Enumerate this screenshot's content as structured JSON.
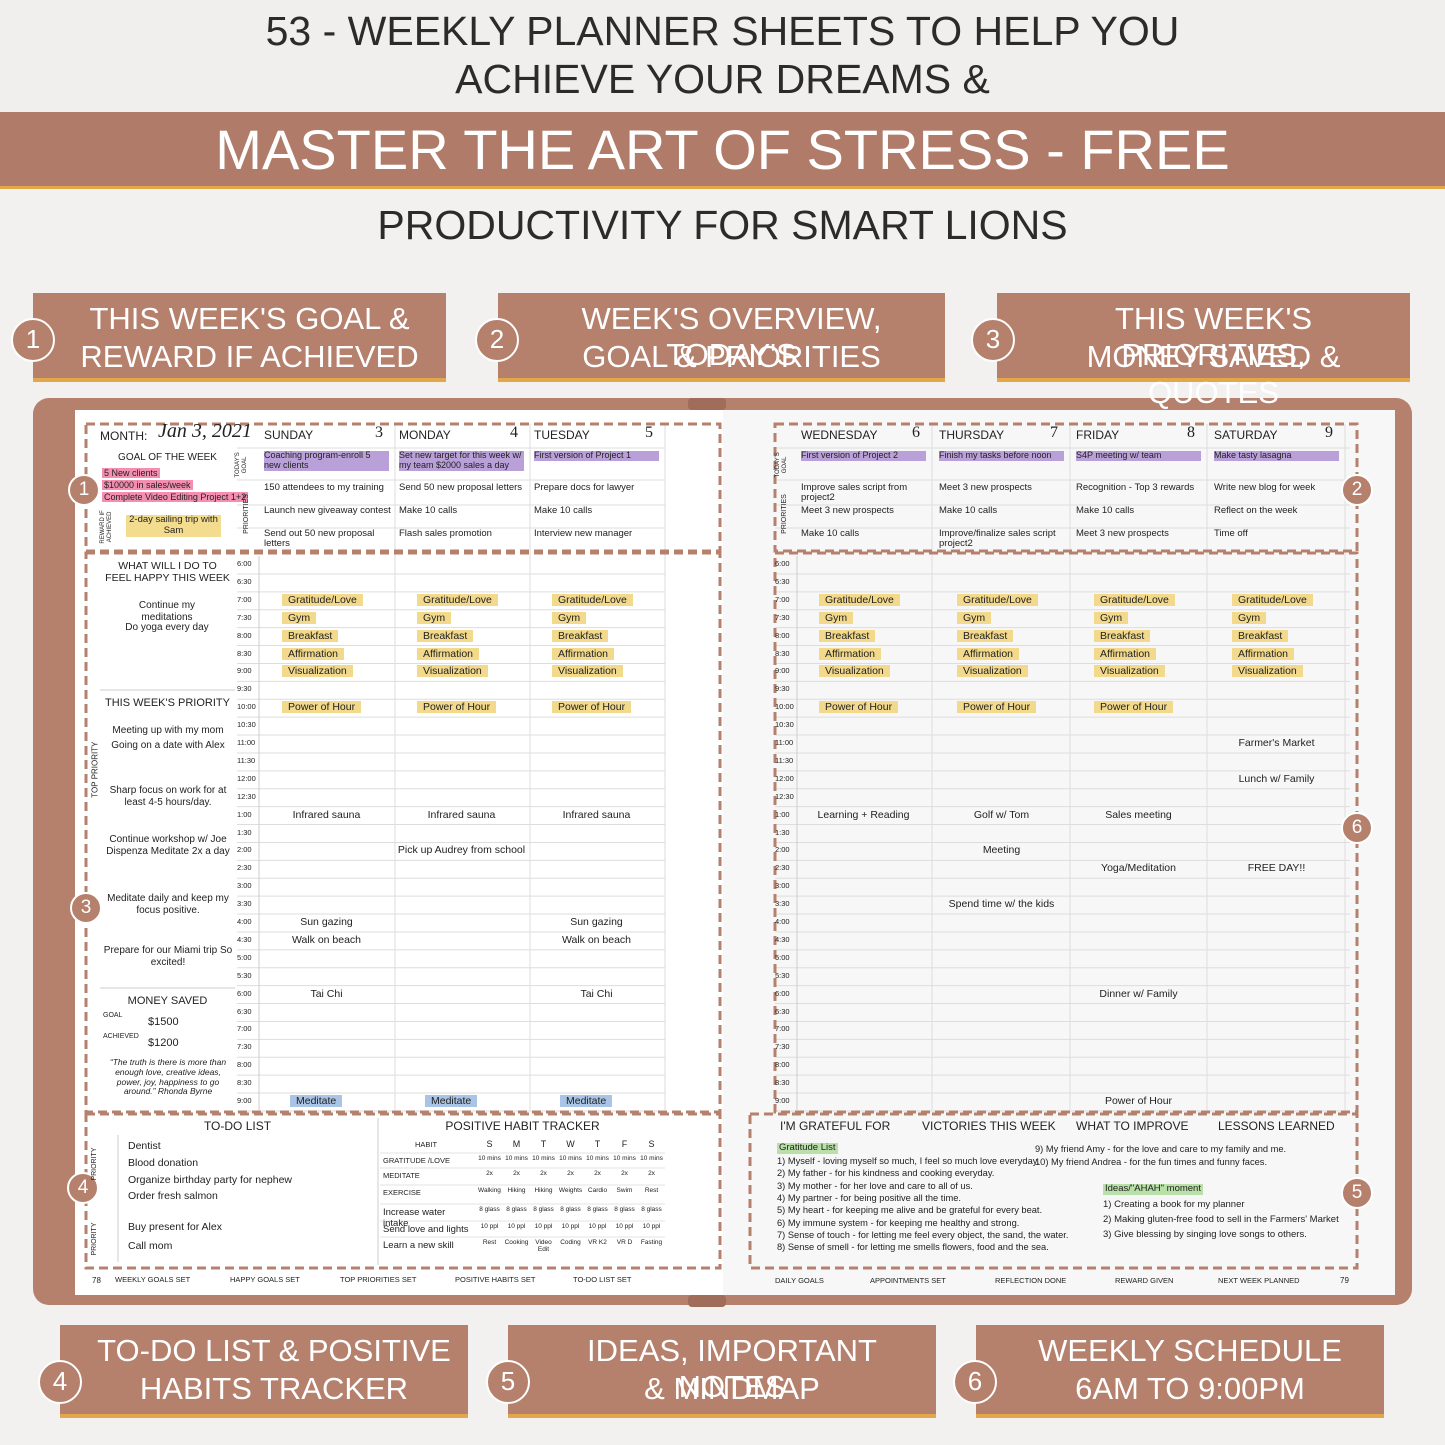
{
  "header": {
    "line1": "53 - WEEKLY PLANNER SHEETS TO HELP YOU",
    "line2": "ACHIEVE YOUR DREAMS &",
    "banner": "MASTER THE ART OF STRESS - FREE",
    "subtitle": "PRODUCTIVITY FOR SMART LIONS"
  },
  "callouts": [
    {
      "number": "1",
      "lines": [
        "THIS WEEK'S GOAL &",
        "REWARD IF ACHIEVED"
      ]
    },
    {
      "number": "2",
      "lines": [
        "WEEK'S OVERVIEW, TODAY'S",
        "GOAL & PRIORITIES"
      ]
    },
    {
      "number": "3",
      "lines": [
        "THIS WEEK'S PRIORITIES,",
        "MONEY SAVED & QUOTES"
      ]
    },
    {
      "number": "4",
      "lines": [
        "TO-DO LIST & POSITIVE",
        "HABITS TRACKER"
      ]
    },
    {
      "number": "5",
      "lines": [
        "IDEAS, IMPORTANT NOTES",
        "& MINDMAP"
      ]
    },
    {
      "number": "6",
      "lines": [
        "WEEKLY SCHEDULE",
        "6AM TO 9:00PM"
      ]
    }
  ],
  "planner": {
    "month_label": "MONTH:",
    "month": "Jan 3, 2021",
    "goal_heading": "GOAL OF THE WEEK",
    "goals": [
      "5 New clients",
      "$10000 in sales/week",
      "Complete Video Editing Project 1+2"
    ],
    "goal_highlight": "#f48fb1",
    "reward_label": "REWARD IF ACHIEVED",
    "reward": "2-day sailing trip with Sam",
    "reward_highlight": "#f4dc8e",
    "happy_heading": "WHAT WILL I DO TO FEEL HAPPY THIS WEEK",
    "happy": [
      "Continue my meditations",
      "Do yoga every day"
    ],
    "priority_heading": "THIS WEEK'S PRIORITY",
    "priority_side": "TOP PRIORITY",
    "priorities": [
      "Meeting up with my mom",
      "Going on a date with Alex",
      "Sharp focus on work for at least 4-5 hours/day.",
      "Continue workshop w/ Joe Dispenza Meditate 2x a day",
      "Meditate daily and keep my focus positive.",
      "Prepare for our Miami trip So excited!"
    ],
    "money_heading": "MONEY SAVED",
    "money_goal_label": "GOAL",
    "money_goal": "$1500",
    "money_achieved_label": "ACHIEVED",
    "money_achieved": "$1200",
    "quote": "“The truth is there is more than enough love, creative ideas, power, joy, happiness to go around.” Rhonda Byrne",
    "goal_row_label": "TODAY'S GOAL",
    "priority_row_label": "PRIORITIES",
    "goal_color": "#b9a0d8",
    "days": [
      {
        "name": "SUNDAY",
        "date": "3",
        "goal": "Coaching program-enroll 5 new clients",
        "priorities": [
          "150 attendees to my training",
          "Launch new giveaway contest",
          "Send out 50 new proposal letters"
        ],
        "items": [
          {
            "text": "Gratitude/Love",
            "highlight": "#f2d98c"
          },
          {
            "text": "Gym",
            "highlight": "#f2d98c"
          },
          {
            "text": "Breakfast",
            "highlight": "#f2d98c"
          },
          {
            "text": "Affirmation",
            "highlight": "#f2d98c"
          },
          {
            "text": "Visualization",
            "highlight": "#f2d98c"
          },
          {
            "text": "Power of Hour",
            "highlight": "#f2d98c"
          },
          {
            "text": "Infrared sauna"
          },
          {
            "text": "Sun gazing"
          },
          {
            "text": "Walk on beach"
          },
          {
            "text": "Tai Chi"
          },
          {
            "text": "Meditate",
            "highlight": "#a9c4e4"
          }
        ]
      },
      {
        "name": "MONDAY",
        "date": "4",
        "goal": "Set new target for this week w/ my team $2000 sales a day",
        "priorities": [
          "Send 50 new proposal letters",
          "Make 10 calls",
          "Flash sales promotion"
        ],
        "items": [
          {
            "text": "Gratitude/Love",
            "highlight": "#f2d98c"
          },
          {
            "text": "Gym",
            "highlight": "#f2d98c"
          },
          {
            "text": "Breakfast",
            "highlight": "#f2d98c"
          },
          {
            "text": "Affirmation",
            "highlight": "#f2d98c"
          },
          {
            "text": "Visualization",
            "highlight": "#f2d98c"
          },
          {
            "text": "Power of Hour",
            "highlight": "#f2d98c"
          },
          {
            "text": "Infrared sauna"
          },
          {
            "text": "Pick up Audrey from school"
          },
          {
            "text": "Meditate",
            "highlight": "#a9c4e4"
          }
        ]
      },
      {
        "name": "TUESDAY",
        "date": "5",
        "goal": "First version of Project 1",
        "priorities": [
          "Prepare docs for lawyer",
          "Make 10 calls",
          "Interview new manager"
        ],
        "items": [
          {
            "text": "Gratitude/Love",
            "highlight": "#f2d98c"
          },
          {
            "text": "Gym",
            "highlight": "#f2d98c"
          },
          {
            "text": "Breakfast",
            "highlight": "#f2d98c"
          },
          {
            "text": "Affirmation",
            "highlight": "#f2d98c"
          },
          {
            "text": "Visualization",
            "highlight": "#f2d98c"
          },
          {
            "text": "Power of Hour",
            "highlight": "#f2d98c"
          },
          {
            "text": "Infrared sauna"
          },
          {
            "text": "Sun gazing"
          },
          {
            "text": "Walk on beach"
          },
          {
            "text": "Tai Chi"
          },
          {
            "text": "Meditate",
            "highlight": "#a9c4e4"
          }
        ]
      },
      {
        "name": "WEDNESDAY",
        "date": "6",
        "goal": "First version of Project 2",
        "priorities": [
          "Improve sales script from project2",
          "Meet 3 new prospects",
          "Make 10 calls"
        ],
        "items": [
          {
            "text": "Gratitude/Love",
            "highlight": "#f2d98c"
          },
          {
            "text": "Gym",
            "highlight": "#f2d98c"
          },
          {
            "text": "Breakfast",
            "highlight": "#f2d98c"
          },
          {
            "text": "Affirmation",
            "highlight": "#f2d98c"
          },
          {
            "text": "Visualization",
            "highlight": "#f2d98c"
          },
          {
            "text": "Power of Hour",
            "highlight": "#f2d98c"
          },
          {
            "text": "Learning + Reading"
          }
        ]
      },
      {
        "name": "THURSDAY",
        "date": "7",
        "goal": "Finish my tasks before noon",
        "priorities": [
          "Meet 3 new prospects",
          "Make 10 calls",
          "Improve/finalize sales script project2"
        ],
        "items": [
          {
            "text": "Gratitude/Love",
            "highlight": "#f2d98c"
          },
          {
            "text": "Gym",
            "highlight": "#f2d98c"
          },
          {
            "text": "Breakfast",
            "highlight": "#f2d98c"
          },
          {
            "text": "Affirmation",
            "highlight": "#f2d98c"
          },
          {
            "text": "Visualization",
            "highlight": "#f2d98c"
          },
          {
            "text": "Power of Hour",
            "highlight": "#f2d98c"
          },
          {
            "text": "Golf w/ Tom"
          },
          {
            "text": "Meeting"
          },
          {
            "text": "Spend time w/ the kids"
          }
        ]
      },
      {
        "name": "FRIDAY",
        "date": "8",
        "goal": "S4P meeting w/ team",
        "priorities": [
          "Recognition - Top 3 rewards",
          "Make 10 calls",
          "Meet 3 new prospects"
        ],
        "items": [
          {
            "text": "Gratitude/Love",
            "highlight": "#f2d98c"
          },
          {
            "text": "Gym",
            "highlight": "#f2d98c"
          },
          {
            "text": "Breakfast",
            "highlight": "#f2d98c"
          },
          {
            "text": "Affirmation",
            "highlight": "#f2d98c"
          },
          {
            "text": "Visualization",
            "highlight": "#f2d98c"
          },
          {
            "text": "Power of Hour",
            "highlight": "#f2d98c"
          },
          {
            "text": "Sales meeting"
          },
          {
            "text": "Yoga/Meditation"
          },
          {
            "text": "Dinner w/ Family"
          },
          {
            "text": "Power of Hour"
          }
        ]
      },
      {
        "name": "SATURDAY",
        "date": "9",
        "goal": "Make tasty lasagna",
        "priorities": [
          "Write new blog for week",
          "Reflect on the week",
          "Time off"
        ],
        "items": [
          {
            "text": "Gratitude/Love",
            "highlight": "#f2d98c"
          },
          {
            "text": "Gym",
            "highlight": "#f2d98c"
          },
          {
            "text": "Breakfast",
            "highlight": "#f2d98c"
          },
          {
            "text": "Affirmation",
            "highlight": "#f2d98c"
          },
          {
            "text": "Visualization",
            "highlight": "#f2d98c"
          },
          {
            "text": "Farmer's Market"
          },
          {
            "text": "Lunch w/ Family"
          },
          {
            "text": "FREE DAY!!"
          }
        ]
      }
    ],
    "times": [
      "6:00",
      "6:30",
      "7:00",
      "7:30",
      "8:00",
      "8:30",
      "9:00",
      "9:30",
      "10:00",
      "10:30",
      "11:00",
      "11:30",
      "12:00",
      "12:30",
      "1:00",
      "1:30",
      "2:00",
      "2:30",
      "3:00",
      "3:30",
      "4:00",
      "4:30",
      "5:00",
      "5:30",
      "6:00",
      "6:30",
      "7:00",
      "7:30",
      "8:00",
      "8:30",
      "9:00"
    ],
    "todo_heading": "TO-DO LIST",
    "todo_side": "PRIORITY",
    "todo": [
      "Dentist",
      "Blood donation",
      "Organize birthday party for nephew",
      "Order fresh salmon",
      "Buy present for Alex",
      "Call mom"
    ],
    "habit_heading": "POSITIVE HABIT TRACKER",
    "habit_label": "HABIT",
    "habit_days": [
      "S",
      "M",
      "T",
      "W",
      "T",
      "F",
      "S"
    ],
    "habits": [
      {
        "name": "GRATITUDE /LOVE",
        "cells": [
          "10 mins",
          "10 mins",
          "10 mins",
          "10 mins",
          "10 mins",
          "10 mins",
          "10 mins"
        ]
      },
      {
        "name": "MEDITATE",
        "cells": [
          "2x",
          "2x",
          "2x",
          "2x",
          "2x",
          "2x",
          "2x"
        ]
      },
      {
        "name": "EXERCISE",
        "cells": [
          "Walking",
          "Hiking",
          "Hiking",
          "Weights",
          "Cardio",
          "Swim",
          "Rest"
        ]
      },
      {
        "name": "Increase water intake",
        "cells": [
          "8 glass",
          "8 glass",
          "8 glass",
          "8 glass",
          "8 glass",
          "8 glass",
          "8 glass"
        ]
      },
      {
        "name": "Send love and lights",
        "cells": [
          "10 ppl",
          "10 ppl",
          "10 ppl",
          "10 ppl",
          "10 ppl",
          "10 ppl",
          "10 ppl"
        ]
      },
      {
        "name": "Learn a new skill",
        "cells": [
          "Rest",
          "Cooking",
          "Video Edit",
          "Coding",
          "VR K2",
          "VR D",
          "Fasting"
        ]
      }
    ],
    "reflection_headings": [
      "I'M GRATEFUL FOR",
      "VICTORIES THIS WEEK",
      "WHAT TO IMPROVE",
      "LESSONS LEARNED"
    ],
    "gratitude_label": "Gratitude List",
    "label_highlight": "#b8e0a8",
    "gratitude": [
      "1) Myself - loving myself so much, I feel so much love everyday.",
      "2) My father - for his kindness and cooking everyday.",
      "3) My mother - for her love and care to all of us.",
      "4) My partner - for being positive all the time.",
      "5) My heart - for keeping me alive and be grateful for every beat.",
      "6) My immune system - for keeping me healthy and strong.",
      "7) Sense of touch - for letting me feel every object, the sand, the water.",
      "8) Sense of smell - for letting me smells flowers, food and the sea.",
      "9) My friend Amy - for the love and care to my family and me.",
      "10) My friend Andrea - for the fun times and funny faces."
    ],
    "ideas_label": "Ideas/\"AHAH\" moment",
    "ideas": [
      "1) Creating a book for my planner",
      "2) Making gluten-free food to sell in the Farmers' Market",
      "3) Give blessing by singing love songs to others."
    ],
    "footer_left": [
      "WEEKLY GOALS SET",
      "HAPPY GOALS SET",
      "TOP PRIORITIES SET",
      "POSITIVE HABITS SET",
      "TO-DO LIST SET"
    ],
    "footer_right": [
      "DAILY GOALS",
      "APPOINTMENTS SET",
      "REFLECTION DONE",
      "REWARD GIVEN",
      "NEXT WEEK PLANNED"
    ],
    "page_left": "78",
    "page_right": "79"
  }
}
